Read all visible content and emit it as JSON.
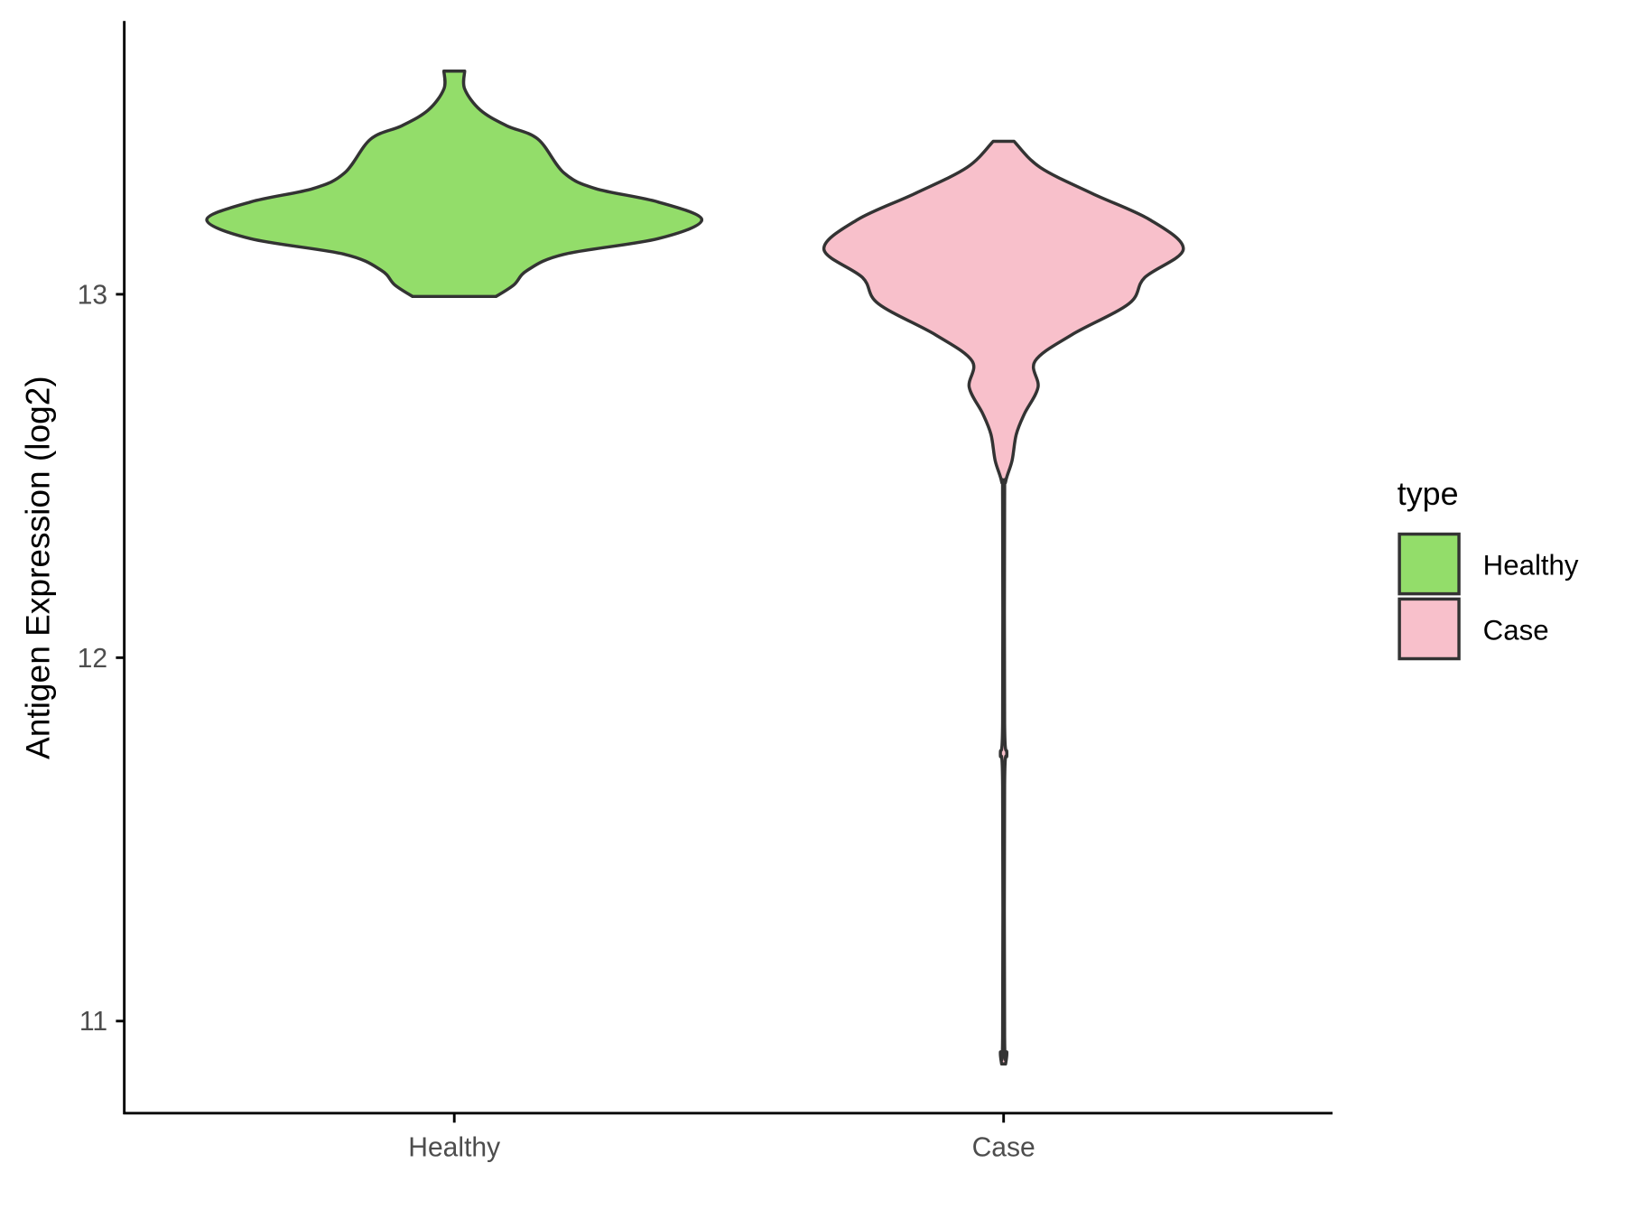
{
  "chart_data": {
    "type": "violin",
    "title": "",
    "xlabel": "",
    "ylabel": "Antigen Expression (log2)",
    "categories": [
      "Healthy",
      "Case"
    ],
    "yticks": [
      11,
      12,
      13
    ],
    "ylim": [
      10.75,
      13.75
    ],
    "grid": false,
    "legend": {
      "title": "type",
      "position": "right",
      "entries": [
        "Healthy",
        "Case"
      ]
    },
    "colors": {
      "Healthy": "#93DD6A",
      "Case": "#F8C0CB",
      "outline": "#333333"
    },
    "series": [
      {
        "name": "Healthy",
        "min": 12.99,
        "max": 13.61,
        "density_profile": [
          [
            13.614,
            0.042
          ],
          [
            13.565,
            0.042
          ],
          [
            13.507,
            0.105
          ],
          [
            13.464,
            0.211
          ],
          [
            13.427,
            0.338
          ],
          [
            13.334,
            0.443
          ],
          [
            13.291,
            0.57
          ],
          [
            13.254,
            0.823
          ],
          [
            13.205,
            1.0
          ],
          [
            13.153,
            0.823
          ],
          [
            13.11,
            0.443
          ],
          [
            13.066,
            0.295
          ],
          [
            13.026,
            0.241
          ],
          [
            12.994,
            0.169
          ]
        ]
      },
      {
        "name": "Case",
        "min": 10.88,
        "max": 13.42,
        "density_profile": [
          [
            13.421,
            0.042
          ],
          [
            13.349,
            0.148
          ],
          [
            13.277,
            0.359
          ],
          [
            13.205,
            0.591
          ],
          [
            13.124,
            0.726
          ],
          [
            13.046,
            0.57
          ],
          [
            12.974,
            0.506
          ],
          [
            12.888,
            0.274
          ],
          [
            12.816,
            0.127
          ],
          [
            12.744,
            0.139
          ],
          [
            12.671,
            0.084
          ],
          [
            12.614,
            0.051
          ],
          [
            12.542,
            0.034
          ],
          [
            12.484,
            0.008
          ],
          [
            12.427,
            0.004
          ],
          [
            11.821,
            0.004
          ],
          [
            11.735,
            0.013
          ],
          [
            11.648,
            0.004
          ],
          [
            10.957,
            0.004
          ],
          [
            10.914,
            0.013
          ],
          [
            10.882,
            0.008
          ]
        ]
      }
    ]
  }
}
